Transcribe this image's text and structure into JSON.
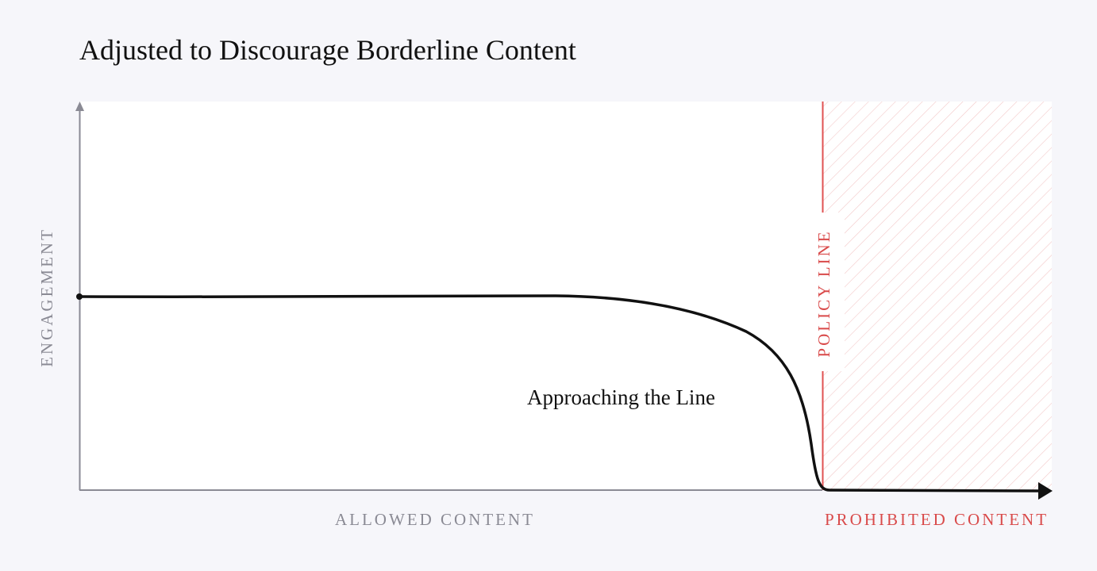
{
  "title": "Adjusted to Discourage Borderline Content",
  "axes": {
    "y_label": "ENGAGEMENT",
    "x_label_allowed": "ALLOWED CONTENT",
    "x_label_prohibited": "PROHIBITED CONTENT"
  },
  "policy_line_label": "POLICY LINE",
  "annotation": "Approaching the Line"
}
